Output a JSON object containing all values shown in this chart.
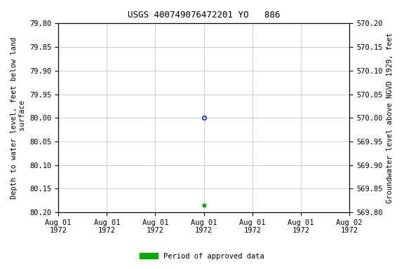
{
  "title": "USGS 400749076472201 YO   886",
  "ylabel_left": "Depth to water level, feet below land\n surface",
  "ylabel_right": "Groundwater level above NGVD 1929, feet",
  "ylim_left": [
    80.2,
    79.8
  ],
  "ylim_right": [
    569.8,
    570.2
  ],
  "yticks_left": [
    79.8,
    79.85,
    79.9,
    79.95,
    80.0,
    80.05,
    80.1,
    80.15,
    80.2
  ],
  "yticks_right": [
    570.2,
    570.15,
    570.1,
    570.05,
    570.0,
    569.95,
    569.9,
    569.85,
    569.8
  ],
  "xlim": [
    0,
    6
  ],
  "xtick_positions": [
    0,
    1,
    2,
    3,
    4,
    5,
    6
  ],
  "xtick_labels": [
    "Aug 01\n1972",
    "Aug 01\n1972",
    "Aug 01\n1972",
    "Aug 01\n1972",
    "Aug 01\n1972",
    "Aug 01\n1972",
    "Aug 02\n1972"
  ],
  "data_point_open": {
    "x": 3,
    "value": 80.0,
    "color": "#0000ff",
    "marker": "o",
    "filled": false,
    "markersize": 4
  },
  "data_point_filled": {
    "x": 3,
    "value": 80.185,
    "color": "#00aa00",
    "marker": "s",
    "filled": true,
    "markersize": 3
  },
  "legend_label": "Period of approved data",
  "legend_color": "#00aa00",
  "background_color": "#ffffff",
  "grid_color": "#bbbbbb",
  "title_fontsize": 9,
  "label_fontsize": 7.5,
  "tick_fontsize": 7.5
}
